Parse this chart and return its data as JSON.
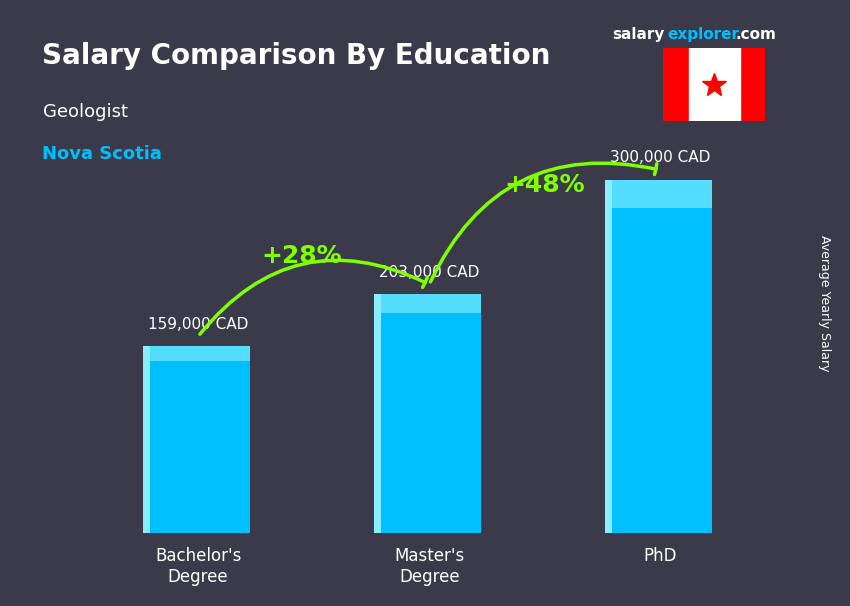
{
  "title": "Salary Comparison By Education",
  "subtitle": "Geologist",
  "location": "Nova Scotia",
  "website": "salaryexplorer.com",
  "ylabel": "Average Yearly Salary",
  "categories": [
    "Bachelor's\nDegree",
    "Master's\nDegree",
    "PhD"
  ],
  "values": [
    159000,
    203000,
    300000
  ],
  "value_labels": [
    "159,000 CAD",
    "203,000 CAD",
    "300,000 CAD"
  ],
  "bar_color": "#00BFFF",
  "bar_color_top": "#00D4FF",
  "pct_labels": [
    "+28%",
    "+48%"
  ],
  "pct_color": "#7FFF00",
  "background_color": "#3a3a4a",
  "title_color": "#FFFFFF",
  "subtitle_color": "#FFFFFF",
  "location_color": "#00BFFF",
  "value_label_color": "#FFFFFF",
  "ylabel_color": "#FFFFFF",
  "website_salary_color": "#FFFFFF",
  "website_explorer_color": "#00BFFF"
}
